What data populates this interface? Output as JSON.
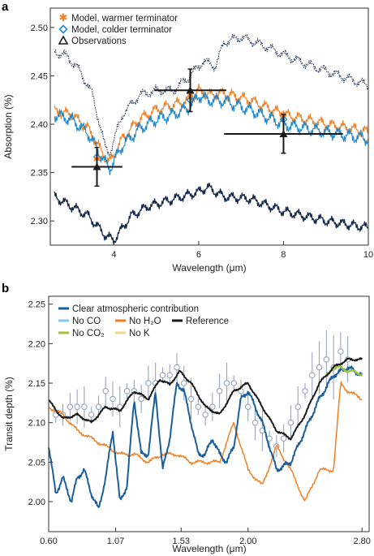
{
  "colors": {
    "warm": "#f07f22",
    "cold": "#1f87c9",
    "dark": "#15284a",
    "black": "#1a1a1a",
    "clear": "#1b5f9a",
    "noCO": "#8ac7ee",
    "noH2O": "#f07f22",
    "noCO2": "#9cc43c",
    "noK": "#f3d98a",
    "obs": "#8c9db8"
  },
  "chart_data": [
    {
      "panel": "a",
      "type": "line",
      "xlabel": "Wavelength (μm)",
      "ylabel": "Absorption (%)",
      "xlim": [
        2.5,
        10
      ],
      "ylim": [
        2.275,
        2.52
      ],
      "xticks": [
        "4",
        "6",
        "8",
        "10"
      ],
      "xtick_values": [
        4,
        6,
        8,
        10
      ],
      "yticks": [
        "2.30",
        "2.35",
        "2.40",
        "2.45",
        "2.50"
      ],
      "ytick_values": [
        2.3,
        2.35,
        2.4,
        2.45,
        2.5
      ],
      "legend": [
        {
          "label": "Model, warmer terminator",
          "marker": "asterisk",
          "color": "#f07f22"
        },
        {
          "label": "Model, colder terminator",
          "marker": "diamond",
          "color": "#1f87c9"
        },
        {
          "label": "Observations",
          "marker": "triangle",
          "color": "#1a1a1a"
        }
      ],
      "series": [
        {
          "style": "warm",
          "x": [
            2.6,
            3.0,
            3.4,
            3.8,
            3.9,
            4.2,
            4.6,
            5.0,
            5.4,
            5.8,
            6.0,
            6.2,
            6.6,
            7.2,
            8.0,
            9.0,
            10.0
          ],
          "y": [
            2.413,
            2.41,
            2.395,
            2.365,
            2.36,
            2.385,
            2.405,
            2.415,
            2.42,
            2.425,
            2.435,
            2.43,
            2.432,
            2.425,
            2.41,
            2.4,
            2.392
          ]
        },
        {
          "style": "cold",
          "x": [
            2.6,
            3.0,
            3.4,
            3.8,
            3.9,
            4.2,
            4.6,
            5.0,
            5.4,
            5.8,
            6.0,
            6.2,
            6.6,
            7.2,
            8.0,
            9.0,
            10.0
          ],
          "y": [
            2.41,
            2.405,
            2.39,
            2.36,
            2.354,
            2.378,
            2.395,
            2.405,
            2.41,
            2.418,
            2.43,
            2.425,
            2.424,
            2.415,
            2.4,
            2.392,
            2.385
          ]
        },
        {
          "style": "dotted",
          "x": [
            2.6,
            2.9,
            3.2,
            3.5,
            3.8,
            3.9,
            4.2,
            4.6,
            5.0,
            5.4,
            5.8,
            6.1,
            6.4,
            6.6,
            7.0,
            7.6,
            8.2,
            9.0,
            10.0
          ],
          "y": [
            2.475,
            2.47,
            2.455,
            2.43,
            2.375,
            2.37,
            2.41,
            2.43,
            2.435,
            2.435,
            2.45,
            2.465,
            2.46,
            2.485,
            2.49,
            2.48,
            2.468,
            2.455,
            2.44
          ]
        },
        {
          "style": "dark",
          "x": [
            2.6,
            3.0,
            3.4,
            3.8,
            4.0,
            4.4,
            4.8,
            5.2,
            5.6,
            6.0,
            6.2,
            6.6,
            7.2,
            8.0,
            9.0,
            10.0
          ],
          "y": [
            2.325,
            2.315,
            2.305,
            2.285,
            2.28,
            2.305,
            2.315,
            2.32,
            2.325,
            2.33,
            2.335,
            2.325,
            2.323,
            2.31,
            2.3,
            2.293
          ]
        }
      ],
      "observations": [
        {
          "x": 3.6,
          "y": 2.356,
          "xerr": 0.6,
          "yerr": 0.02
        },
        {
          "x": 5.8,
          "y": 2.435,
          "xerr": 0.85,
          "yerr": 0.022
        },
        {
          "x": 8.0,
          "y": 2.39,
          "xerr": 1.4,
          "yerr": 0.02
        }
      ],
      "model_points": [
        {
          "x": 3.6,
          "y": 2.366,
          "marker": "diamond"
        },
        {
          "x": 3.6,
          "y": 2.364,
          "marker": "asterisk"
        },
        {
          "x": 5.8,
          "y": 2.425,
          "marker": "diamond"
        },
        {
          "x": 5.8,
          "y": 2.43,
          "marker": "asterisk"
        },
        {
          "x": 8.0,
          "y": 2.405,
          "marker": "diamond"
        },
        {
          "x": 8.0,
          "y": 2.41,
          "marker": "asterisk"
        }
      ]
    },
    {
      "panel": "b",
      "type": "line",
      "xlabel": "Wavelength (μm)",
      "ylabel": "Transit depth (%)",
      "xlim": [
        0.6,
        2.85
      ],
      "ylim": [
        1.962,
        2.26
      ],
      "xticks": [
        "0.60",
        "1.07",
        "1.53",
        "2.00",
        "2.80"
      ],
      "xtick_values": [
        0.6,
        1.07,
        1.53,
        2.0,
        2.8
      ],
      "yticks": [
        "2.00",
        "2.05",
        "2.10",
        "2.15",
        "2.20",
        "2.25"
      ],
      "ytick_values": [
        2.0,
        2.05,
        2.1,
        2.15,
        2.2,
        2.25
      ],
      "legend": [
        {
          "label": "Clear atmospheric contribution",
          "color": "#1b5f9a"
        },
        {
          "label": "No CO",
          "color": "#8ac7ee"
        },
        {
          "label": "No H₂O",
          "color": "#f07f22"
        },
        {
          "label": "Reference",
          "color": "#1a1a1a"
        },
        {
          "label": "No CO₂",
          "color": "#9cc43c"
        },
        {
          "label": "No K",
          "color": "#f3d98a"
        }
      ],
      "series": [
        {
          "name": "Reference",
          "style": "reference",
          "x": [
            0.6,
            0.7,
            0.8,
            0.9,
            1.0,
            1.1,
            1.2,
            1.3,
            1.38,
            1.45,
            1.52,
            1.6,
            1.7,
            1.8,
            1.9,
            2.0,
            2.1,
            2.2,
            2.3,
            2.4,
            2.5,
            2.6,
            2.7,
            2.8
          ],
          "y": [
            2.128,
            2.105,
            2.11,
            2.1,
            2.12,
            2.115,
            2.14,
            2.13,
            2.155,
            2.148,
            2.165,
            2.15,
            2.12,
            2.11,
            2.14,
            2.15,
            2.12,
            2.09,
            2.08,
            2.11,
            2.15,
            2.17,
            2.18,
            2.18
          ]
        },
        {
          "name": "Clear atmospheric contribution",
          "style": "clear",
          "x": [
            0.6,
            0.65,
            0.7,
            0.76,
            0.8,
            0.85,
            0.9,
            0.95,
            1.0,
            1.05,
            1.1,
            1.15,
            1.2,
            1.25,
            1.3,
            1.35,
            1.4,
            1.45,
            1.5,
            1.55,
            1.6,
            1.65,
            1.7,
            1.75,
            1.8,
            1.85,
            1.9,
            1.95,
            2.0,
            2.05,
            2.1,
            2.15,
            2.2,
            2.3,
            2.4,
            2.5,
            2.6,
            2.7,
            2.8
          ],
          "y": [
            2.07,
            2.01,
            2.03,
            2.0,
            2.03,
            2.04,
            2.01,
            1.99,
            2.03,
            2.09,
            2.0,
            2.02,
            2.13,
            2.06,
            2.06,
            2.14,
            2.04,
            2.08,
            2.15,
            2.14,
            2.1,
            2.06,
            2.06,
            2.08,
            2.06,
            2.05,
            2.07,
            2.13,
            2.14,
            2.12,
            2.1,
            2.07,
            2.04,
            2.05,
            2.09,
            2.13,
            2.16,
            2.17,
            2.16
          ]
        },
        {
          "name": "No H₂O",
          "style": "noH2O",
          "x": [
            0.6,
            0.7,
            0.8,
            0.9,
            1.0,
            1.1,
            1.2,
            1.3,
            1.4,
            1.5,
            1.6,
            1.7,
            1.8,
            1.9,
            2.0,
            2.1,
            2.2,
            2.3,
            2.4,
            2.5,
            2.6,
            2.65,
            2.7,
            2.8
          ],
          "y": [
            2.12,
            2.11,
            2.09,
            2.08,
            2.07,
            2.06,
            2.06,
            2.05,
            2.06,
            2.06,
            2.05,
            2.05,
            2.05,
            2.1,
            2.04,
            2.02,
            2.07,
            2.04,
            2.0,
            2.04,
            2.04,
            2.15,
            2.14,
            2.13
          ]
        },
        {
          "name": "No CO₂",
          "style": "noCO2",
          "x": [
            2.55,
            2.6,
            2.65,
            2.7,
            2.75,
            2.8
          ],
          "y": [
            2.16,
            2.17,
            2.17,
            2.165,
            2.165,
            2.16
          ]
        }
      ],
      "observations": [
        {
          "x": 0.65,
          "y": 2.11
        },
        {
          "x": 0.7,
          "y": 2.11
        },
        {
          "x": 0.75,
          "y": 2.12
        },
        {
          "x": 0.8,
          "y": 2.12
        },
        {
          "x": 0.85,
          "y": 2.12
        },
        {
          "x": 0.9,
          "y": 2.11
        },
        {
          "x": 0.95,
          "y": 2.12
        },
        {
          "x": 1.0,
          "y": 2.14
        },
        {
          "x": 1.05,
          "y": 2.13
        },
        {
          "x": 1.1,
          "y": 2.12
        },
        {
          "x": 1.15,
          "y": 2.14
        },
        {
          "x": 1.2,
          "y": 2.14
        },
        {
          "x": 1.25,
          "y": 2.13
        },
        {
          "x": 1.3,
          "y": 2.15
        },
        {
          "x": 1.35,
          "y": 2.15
        },
        {
          "x": 1.4,
          "y": 2.16
        },
        {
          "x": 1.45,
          "y": 2.16
        },
        {
          "x": 1.5,
          "y": 2.17
        },
        {
          "x": 1.55,
          "y": 2.15
        },
        {
          "x": 1.6,
          "y": 2.13
        },
        {
          "x": 1.65,
          "y": 2.12
        },
        {
          "x": 1.7,
          "y": 2.11
        },
        {
          "x": 1.75,
          "y": 2.12
        },
        {
          "x": 1.8,
          "y": 2.14
        },
        {
          "x": 1.85,
          "y": 2.15
        },
        {
          "x": 1.9,
          "y": 2.15
        },
        {
          "x": 1.95,
          "y": 2.14
        },
        {
          "x": 2.0,
          "y": 2.12
        },
        {
          "x": 2.05,
          "y": 2.1
        },
        {
          "x": 2.1,
          "y": 2.09
        },
        {
          "x": 2.15,
          "y": 2.08
        },
        {
          "x": 2.2,
          "y": 2.07
        },
        {
          "x": 2.25,
          "y": 2.08
        },
        {
          "x": 2.3,
          "y": 2.1
        },
        {
          "x": 2.35,
          "y": 2.12
        },
        {
          "x": 2.4,
          "y": 2.14
        },
        {
          "x": 2.45,
          "y": 2.16
        },
        {
          "x": 2.5,
          "y": 2.17
        },
        {
          "x": 2.55,
          "y": 2.18
        },
        {
          "x": 2.6,
          "y": 2.17
        },
        {
          "x": 2.65,
          "y": 2.19
        },
        {
          "x": 2.7,
          "y": 2.18
        }
      ]
    }
  ]
}
